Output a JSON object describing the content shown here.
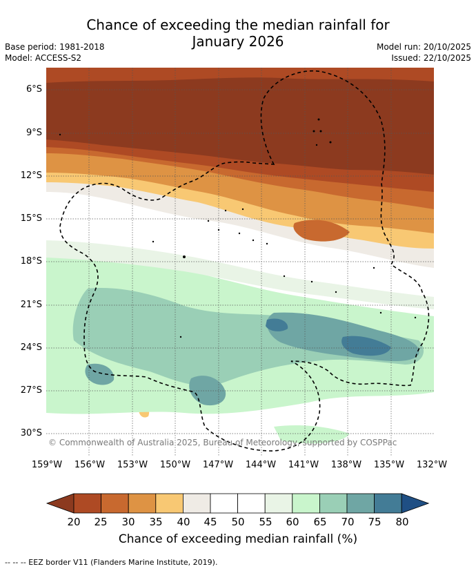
{
  "title_line1": "Chance of exceeding the median rainfall for",
  "title_line2": "January 2026",
  "base_period": "Base period: 1981-2018",
  "model": "Model: ACCESS-S2",
  "model_run": "Model run: 20/10/2025",
  "issued": "Issued: 22/10/2025",
  "copyright": "© Commonwealth of Australia 2025, Bureau of Meteorology, supported by COSPPac",
  "lat_labels": [
    "6°S",
    "9°S",
    "12°S",
    "15°S",
    "18°S",
    "21°S",
    "24°S",
    "27°S",
    "30°S"
  ],
  "lon_labels": [
    "159°W",
    "156°W",
    "153°W",
    "150°W",
    "147°W",
    "144°W",
    "141°W",
    "138°W",
    "135°W",
    "132°W"
  ],
  "colorbar": {
    "labels": [
      "20",
      "25",
      "30",
      "35",
      "40",
      "45",
      "50",
      "55",
      "60",
      "65",
      "70",
      "75",
      "80"
    ],
    "colors": [
      "#8c3a1f",
      "#ae4a24",
      "#c8692f",
      "#de9344",
      "#f8c873",
      "#efebe5",
      "#ffffff",
      "#ffffff",
      "#e9f4e6",
      "#c9f5cc",
      "#9acfb6",
      "#6fa6a4",
      "#437c96",
      "#1f4f84"
    ],
    "title": "Chance of exceeding median rainfall (%)"
  },
  "footnote": "--  --  -- EEZ border V11 (Flanders Marine Institute, 2019)."
}
